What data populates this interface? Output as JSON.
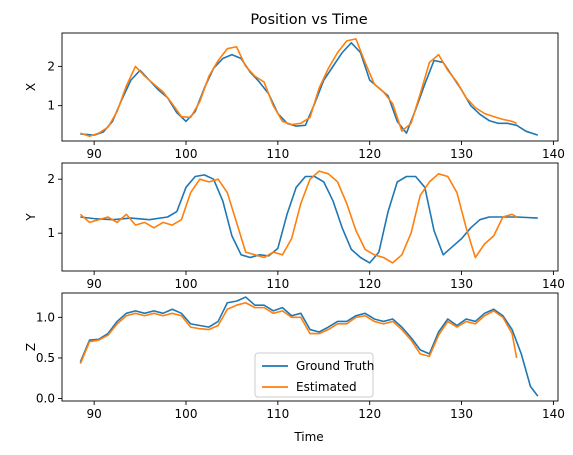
{
  "figure": {
    "title": "Position vs Time",
    "xlabel": "Time"
  },
  "colors": {
    "ground_truth": "#1f77b4",
    "estimated": "#ff7f0e"
  },
  "chart_data": [
    {
      "type": "line",
      "panel": "X",
      "ylabel": "X",
      "xlim": [
        86.5,
        140.5
      ],
      "ylim": [
        0.1,
        2.85
      ],
      "xticks": [
        90,
        100,
        110,
        120,
        130,
        140
      ],
      "yticks": [
        1,
        2
      ],
      "grid": false,
      "series": [
        {
          "name": "Ground Truth",
          "x": [
            88.5,
            90,
            91,
            92,
            93,
            94,
            95,
            96,
            97,
            98,
            99,
            100,
            101,
            102,
            103,
            104,
            105,
            106,
            107,
            108,
            109,
            110,
            111,
            112,
            113,
            114,
            115,
            116,
            117,
            118,
            119,
            120,
            121,
            122,
            123,
            124,
            125,
            126,
            127,
            128,
            129,
            130,
            131,
            132,
            133,
            134,
            135,
            136,
            137,
            138.3
          ],
          "y": [
            0.28,
            0.25,
            0.33,
            0.6,
            1.15,
            1.65,
            1.9,
            1.65,
            1.4,
            1.2,
            0.82,
            0.6,
            0.85,
            1.45,
            1.95,
            2.2,
            2.3,
            2.2,
            1.85,
            1.6,
            1.3,
            0.8,
            0.55,
            0.48,
            0.5,
            1.05,
            1.65,
            2.0,
            2.35,
            2.6,
            2.35,
            1.65,
            1.45,
            1.25,
            0.6,
            0.3,
            0.9,
            1.55,
            2.15,
            2.1,
            1.75,
            1.4,
            1.0,
            0.78,
            0.62,
            0.55,
            0.55,
            0.5,
            0.35,
            0.25
          ]
        },
        {
          "name": "Estimated",
          "x": [
            88.5,
            89.5,
            90.5,
            91.5,
            92.5,
            93.5,
            94.5,
            95.5,
            96.5,
            97.5,
            98.5,
            99.5,
            100.5,
            101.5,
            102.5,
            103.5,
            104.5,
            105.5,
            106.5,
            107.5,
            108.5,
            109.5,
            110.5,
            111.5,
            112.5,
            113.5,
            114.5,
            115.5,
            116.5,
            117.5,
            118.5,
            119.5,
            120.5,
            121.5,
            122.5,
            123.5,
            124.5,
            125.5,
            126.5,
            127.5,
            128.5,
            129.5,
            130.5,
            131.5,
            132.5,
            133.5,
            134.5,
            135.5,
            136
          ],
          "y": [
            0.3,
            0.22,
            0.3,
            0.45,
            0.85,
            1.5,
            2.0,
            1.75,
            1.55,
            1.35,
            1.05,
            0.72,
            0.7,
            1.1,
            1.75,
            2.15,
            2.45,
            2.5,
            2.0,
            1.75,
            1.6,
            1.0,
            0.6,
            0.52,
            0.55,
            0.7,
            1.45,
            1.95,
            2.35,
            2.65,
            2.7,
            2.1,
            1.55,
            1.35,
            1.05,
            0.35,
            0.55,
            1.3,
            2.1,
            2.3,
            1.9,
            1.6,
            1.2,
            0.95,
            0.8,
            0.72,
            0.65,
            0.6,
            0.55
          ]
        }
      ]
    },
    {
      "type": "line",
      "panel": "Y",
      "ylabel": "Y",
      "xlim": [
        86.5,
        140.5
      ],
      "ylim": [
        0.3,
        2.3
      ],
      "xticks": [
        90,
        100,
        110,
        120,
        130,
        140
      ],
      "yticks": [
        1,
        2
      ],
      "grid": false,
      "series": [
        {
          "name": "Ground Truth",
          "x": [
            88.5,
            90,
            92,
            94,
            96,
            98,
            99,
            100,
            101,
            102,
            103,
            104,
            105,
            106,
            107,
            108,
            109,
            110,
            111,
            112,
            113,
            114,
            115,
            116,
            117,
            118,
            119,
            120,
            121,
            122,
            123,
            124,
            125,
            126,
            127,
            128,
            129,
            130,
            131,
            132,
            133,
            134,
            136,
            138.3
          ],
          "y": [
            1.3,
            1.27,
            1.25,
            1.28,
            1.25,
            1.3,
            1.4,
            1.85,
            2.05,
            2.08,
            2.0,
            1.6,
            0.95,
            0.6,
            0.55,
            0.6,
            0.58,
            0.72,
            1.35,
            1.85,
            2.05,
            2.05,
            1.95,
            1.6,
            1.1,
            0.7,
            0.55,
            0.45,
            0.65,
            1.4,
            1.95,
            2.05,
            2.05,
            1.85,
            1.05,
            0.6,
            0.75,
            0.9,
            1.1,
            1.25,
            1.3,
            1.3,
            1.3,
            1.28
          ]
        },
        {
          "name": "Estimated",
          "x": [
            88.5,
            89.5,
            90.5,
            91.5,
            92.5,
            93.5,
            94.5,
            95.5,
            96.5,
            97.5,
            98.5,
            99.5,
            100.5,
            101.5,
            102.5,
            103.5,
            104.5,
            105.5,
            106.5,
            107.5,
            108.5,
            109.5,
            110.5,
            111.5,
            112.5,
            113.5,
            114.5,
            115.5,
            116.5,
            117.5,
            118.5,
            119.5,
            120.5,
            121.5,
            122.5,
            123.5,
            124.5,
            125.5,
            126.5,
            127.5,
            128.5,
            129.5,
            130.5,
            131.5,
            132.5,
            133.5,
            134.5,
            135.5,
            136
          ],
          "y": [
            1.35,
            1.2,
            1.25,
            1.3,
            1.2,
            1.35,
            1.15,
            1.2,
            1.1,
            1.2,
            1.15,
            1.25,
            1.75,
            2.0,
            1.95,
            2.0,
            1.75,
            1.2,
            0.65,
            0.6,
            0.55,
            0.65,
            0.6,
            0.9,
            1.55,
            2.0,
            2.15,
            2.1,
            1.95,
            1.55,
            1.05,
            0.7,
            0.6,
            0.55,
            0.45,
            0.6,
            1.0,
            1.7,
            1.95,
            2.1,
            2.05,
            1.75,
            1.1,
            0.55,
            0.8,
            0.95,
            1.3,
            1.35,
            1.3
          ]
        }
      ]
    },
    {
      "type": "line",
      "panel": "Z",
      "ylabel": "Z",
      "xlim": [
        86.5,
        140.5
      ],
      "ylim": [
        -0.03,
        1.3
      ],
      "xticks": [
        90,
        100,
        110,
        120,
        130,
        140
      ],
      "yticks": [
        0.0,
        0.5,
        1.0
      ],
      "grid": false,
      "legend": "lower-center",
      "series": [
        {
          "name": "Ground Truth",
          "x": [
            88.5,
            89.5,
            90.5,
            91.5,
            92.5,
            93.5,
            94.5,
            95.5,
            96.5,
            97.5,
            98.5,
            99.5,
            100.5,
            101.5,
            102.5,
            103.5,
            104.5,
            105.5,
            106.5,
            107.5,
            108.5,
            109.5,
            110.5,
            111.5,
            112.5,
            113.5,
            114.5,
            115.5,
            116.5,
            117.5,
            118.5,
            119.5,
            120.5,
            121.5,
            122.5,
            123.5,
            124.5,
            125.5,
            126.5,
            127.5,
            128.5,
            129.5,
            130.5,
            131.5,
            132.5,
            133.5,
            134.5,
            135.5,
            136.5,
            137.5,
            138.3
          ],
          "y": [
            0.45,
            0.72,
            0.73,
            0.8,
            0.95,
            1.05,
            1.08,
            1.05,
            1.08,
            1.05,
            1.1,
            1.05,
            0.92,
            0.9,
            0.88,
            0.95,
            1.18,
            1.2,
            1.25,
            1.15,
            1.15,
            1.08,
            1.12,
            1.02,
            1.05,
            0.85,
            0.82,
            0.88,
            0.95,
            0.95,
            1.02,
            1.05,
            0.98,
            0.95,
            0.98,
            0.88,
            0.75,
            0.6,
            0.55,
            0.82,
            0.98,
            0.9,
            0.98,
            0.95,
            1.05,
            1.1,
            1.02,
            0.85,
            0.55,
            0.15,
            0.03
          ]
        },
        {
          "name": "Estimated",
          "x": [
            88.5,
            89.5,
            90.5,
            91.5,
            92.5,
            93.5,
            94.5,
            95.5,
            96.5,
            97.5,
            98.5,
            99.5,
            100.5,
            101.5,
            102.5,
            103.5,
            104.5,
            105.5,
            106.5,
            107.5,
            108.5,
            109.5,
            110.5,
            111.5,
            112.5,
            113.5,
            114.5,
            115.5,
            116.5,
            117.5,
            118.5,
            119.5,
            120.5,
            121.5,
            122.5,
            123.5,
            124.5,
            125.5,
            126.5,
            127.5,
            128.5,
            129.5,
            130.5,
            131.5,
            132.5,
            133.5,
            134.5,
            135.5,
            136
          ],
          "y": [
            0.43,
            0.7,
            0.72,
            0.78,
            0.92,
            1.02,
            1.05,
            1.02,
            1.05,
            1.02,
            1.05,
            1.02,
            0.88,
            0.86,
            0.85,
            0.9,
            1.1,
            1.15,
            1.18,
            1.12,
            1.12,
            1.05,
            1.08,
            1.0,
            1.0,
            0.8,
            0.8,
            0.85,
            0.92,
            0.92,
            1.0,
            1.02,
            0.95,
            0.92,
            0.95,
            0.85,
            0.72,
            0.55,
            0.52,
            0.78,
            0.95,
            0.88,
            0.95,
            0.92,
            1.02,
            1.08,
            1.0,
            0.8,
            0.5
          ]
        }
      ]
    }
  ]
}
